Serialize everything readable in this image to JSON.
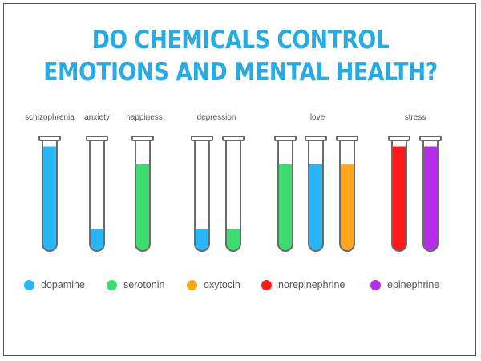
{
  "title": {
    "line1": "DO CHEMICALS CONTROL",
    "line2": "EMOTIONS AND MENTAL HEALTH?"
  },
  "conditions": [
    "schizophrenia",
    "anxiety",
    "happiness",
    "depression",
    "love",
    "stress"
  ],
  "chemicals": [
    {
      "name": "dopamine",
      "color": "#29b6f6"
    },
    {
      "name": "serotonin",
      "color": "#3ddc6e"
    },
    {
      "name": "oxytocin",
      "color": "#ffa51f"
    },
    {
      "name": "norepinephrine",
      "color": "#ff1a1a"
    },
    {
      "name": "epinephrine",
      "color": "#b32ee6"
    }
  ],
  "tubes": [
    {
      "condition": "schizophrenia",
      "chemical": "dopamine",
      "level": 0.98
    },
    {
      "condition": "anxiety",
      "chemical": "dopamine",
      "level": 0.15
    },
    {
      "condition": "happiness",
      "chemical": "serotonin",
      "level": 0.8
    },
    {
      "condition": "depression",
      "chemical": "dopamine",
      "level": 0.15
    },
    {
      "condition": "depression",
      "chemical": "serotonin",
      "level": 0.15
    },
    {
      "condition": "love",
      "chemical": "serotonin",
      "level": 0.8
    },
    {
      "condition": "love",
      "chemical": "dopamine",
      "level": 0.8
    },
    {
      "condition": "love",
      "chemical": "oxytocin",
      "level": 0.8
    },
    {
      "condition": "stress",
      "chemical": "norepinephrine",
      "level": 0.98
    },
    {
      "condition": "stress",
      "chemical": "epinephrine",
      "level": 0.98
    }
  ]
}
